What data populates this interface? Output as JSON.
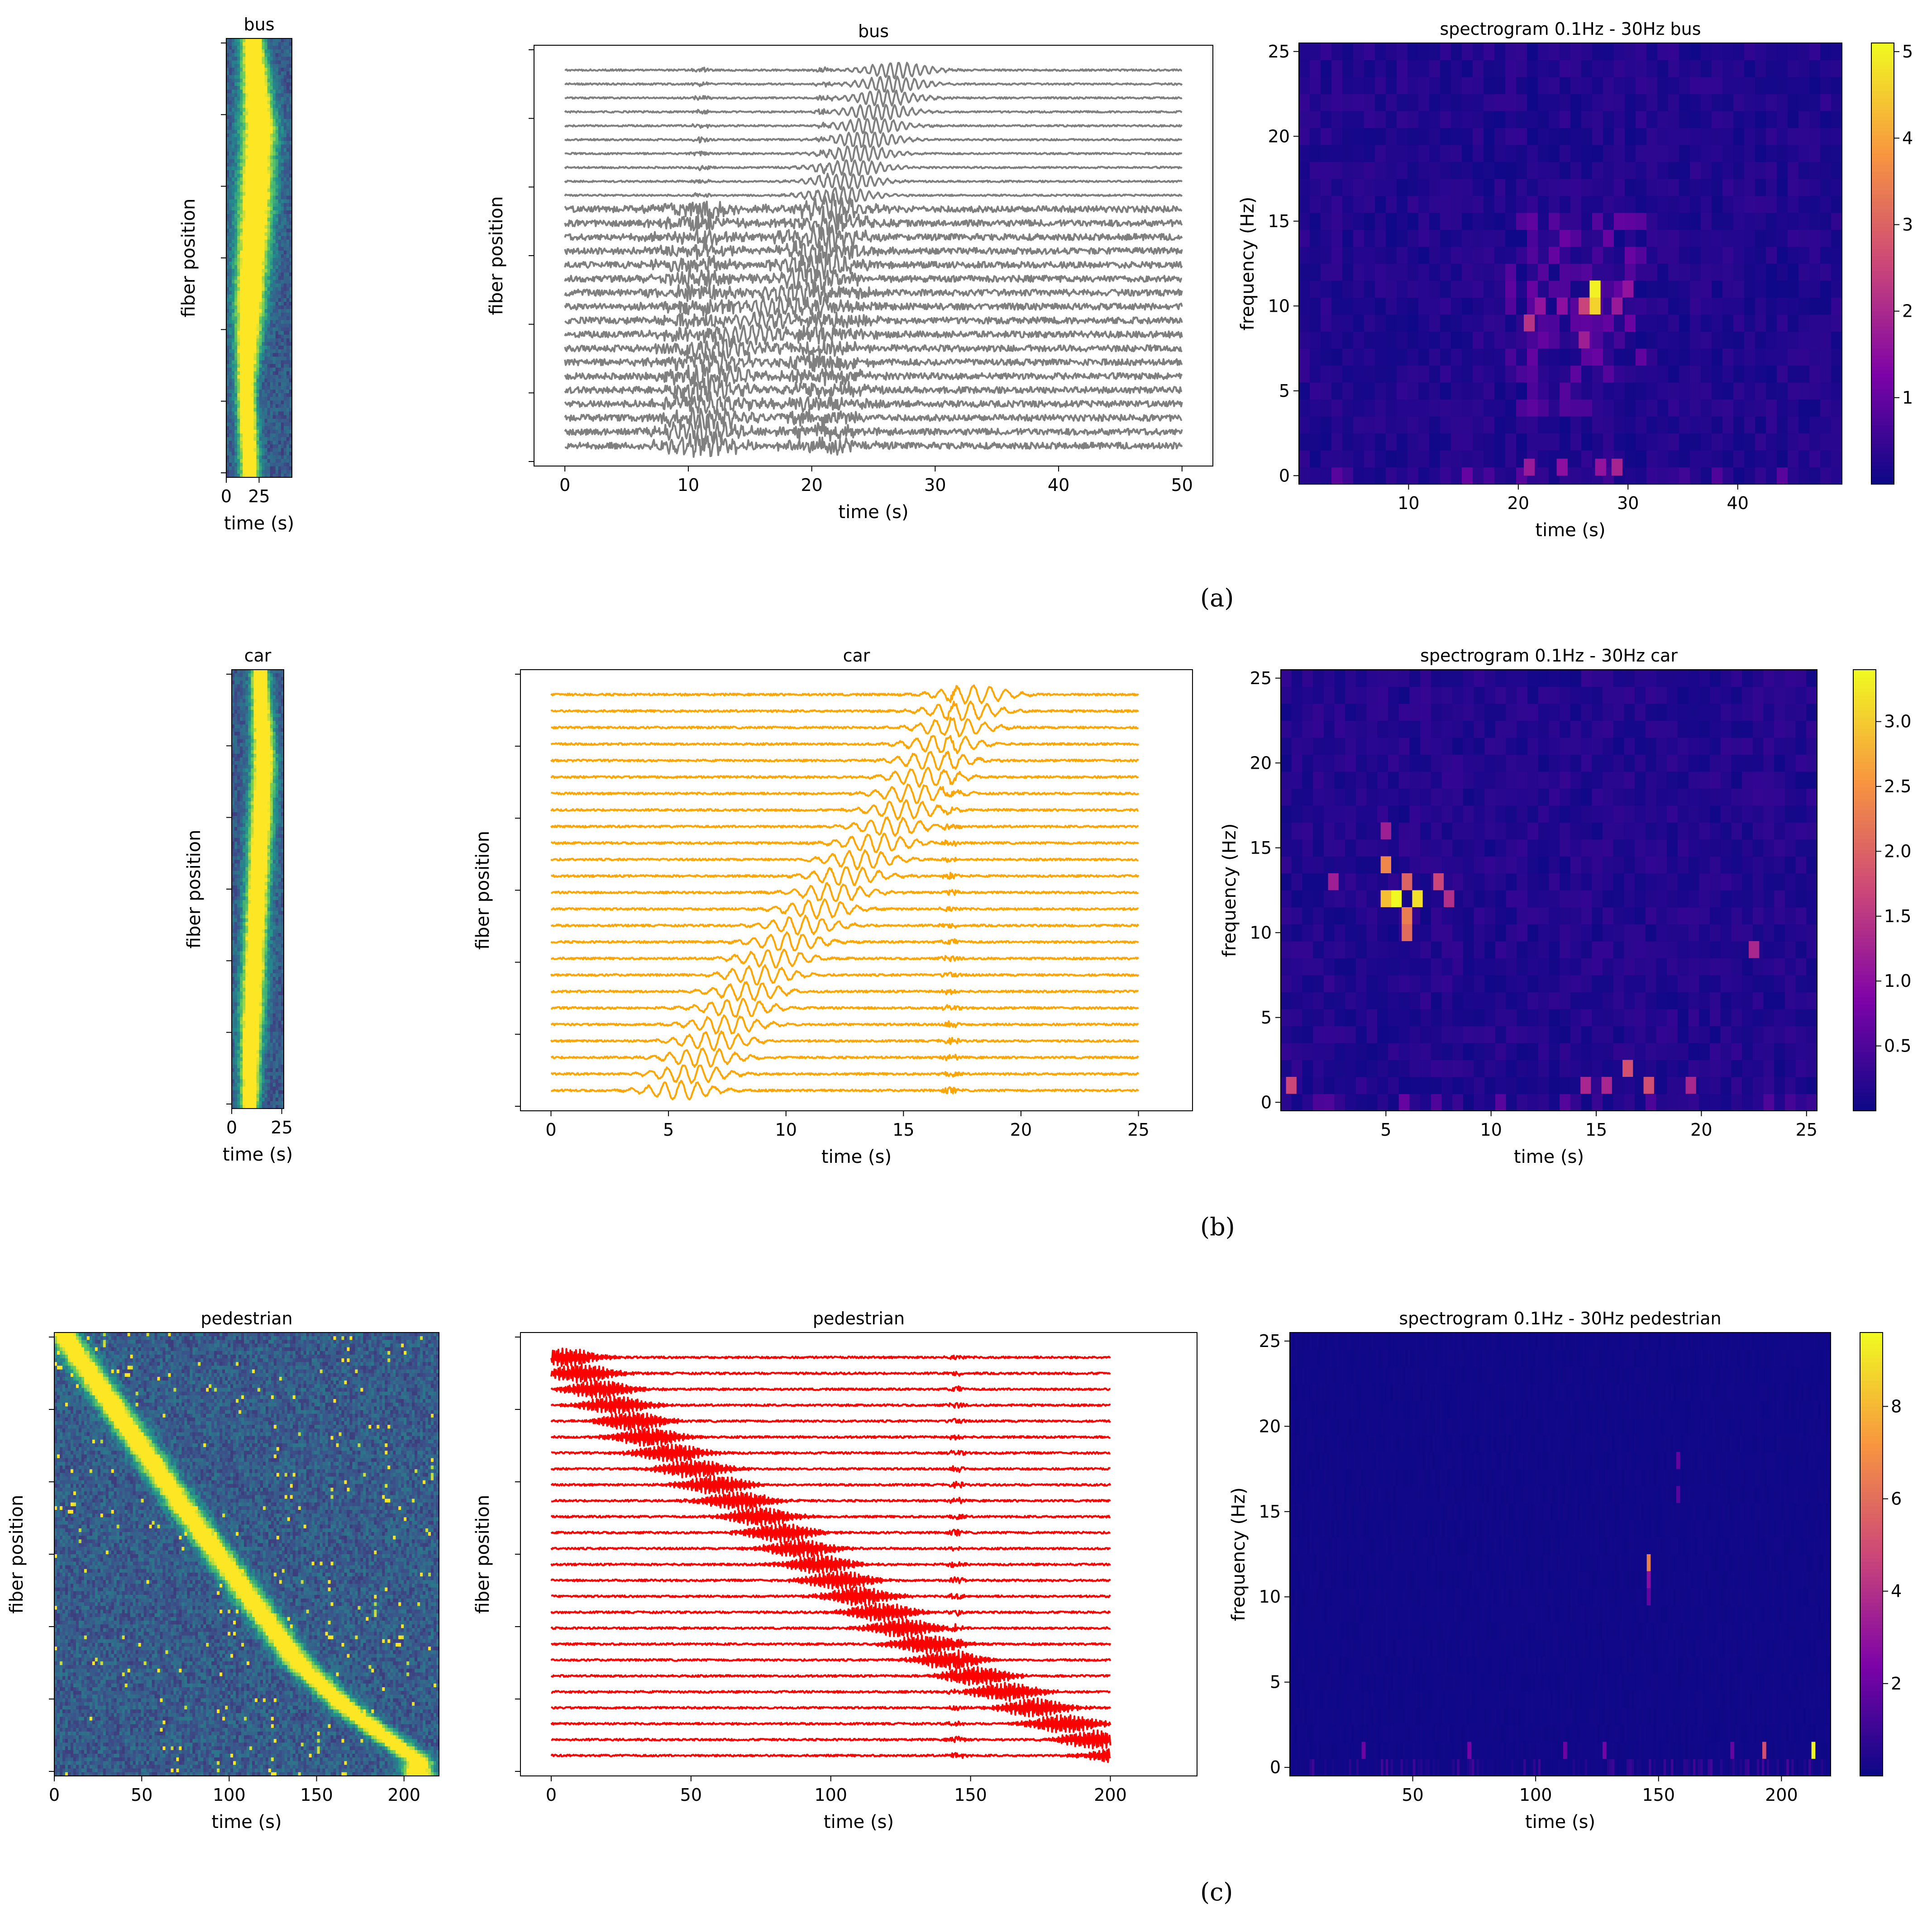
{
  "panel_captions": [
    "(a)",
    "(b)",
    "(c)"
  ],
  "chart_data": [
    {
      "panel": "a",
      "type": "heatmap",
      "title": "bus",
      "xlabel": "time (s)",
      "ylabel": "fiber position",
      "xticks": [
        0,
        25
      ],
      "xlim": [
        0,
        50
      ],
      "colormap": "viridis",
      "y_ticks_unlabeled": 7,
      "pattern": {
        "kind": "band",
        "x_center": [
          20,
          25,
          22,
          18,
          15,
          18
        ],
        "width": [
          12,
          18,
          18,
          16,
          10,
          10
        ],
        "noise": 0.2
      }
    },
    {
      "panel": "a",
      "type": "line",
      "title": "bus",
      "xlabel": "time (s)",
      "ylabel": "fiber position",
      "xticks": [
        0,
        10,
        20,
        30,
        40,
        50
      ],
      "xlim": [
        -2.5,
        52.5
      ],
      "n_traces": 28,
      "color": "#808080",
      "y_ticks_unlabeled": 7,
      "event_curve": [
        [
          0,
          27
        ],
        [
          0.35,
          22
        ],
        [
          0.55,
          20
        ],
        [
          0.75,
          13
        ],
        [
          1,
          11
        ]
      ],
      "spread_s": 3,
      "noisy_below_fraction": 0.65,
      "noisy_times": [
        11,
        21
      ]
    },
    {
      "panel": "a",
      "type": "heatmap",
      "title": "spectrogram 0.1Hz - 30Hz  bus",
      "xlabel": "time (s)",
      "ylabel": "frequency (Hz)",
      "xticks": [
        10,
        20,
        30,
        40
      ],
      "yticks": [
        0,
        5,
        10,
        15,
        20,
        25
      ],
      "xlim": [
        0,
        49.5
      ],
      "ylim": [
        -0.5,
        25.5
      ],
      "colormap": "plasma",
      "colorbar": {
        "min": 0,
        "max": 5.1,
        "ticks": [
          1,
          2,
          3,
          4,
          5
        ]
      },
      "hot_cells": [
        {
          "t": 27,
          "f": 11,
          "v": 5.0
        },
        {
          "t": 27,
          "f": 10,
          "v": 4.6
        },
        {
          "t": 26,
          "f": 10,
          "v": 2.5
        },
        {
          "t": 21,
          "f": 9,
          "v": 2.2
        },
        {
          "t": 22,
          "f": 10,
          "v": 1.6
        },
        {
          "t": 29,
          "f": 10,
          "v": 1.7
        },
        {
          "t": 24,
          "f": 10,
          "v": 1.5
        },
        {
          "t": 26,
          "f": 8,
          "v": 1.8
        },
        {
          "t": 30,
          "f": 11,
          "v": 1.6
        },
        {
          "t": 21,
          "f": 0.5,
          "v": 1.7
        },
        {
          "t": 29,
          "f": 0.5,
          "v": 1.9
        },
        {
          "t": 24,
          "f": 0.5,
          "v": 1.5
        },
        {
          "t": 27.5,
          "f": 0.5,
          "v": 1.6
        }
      ]
    },
    {
      "panel": "b",
      "type": "heatmap",
      "title": "car",
      "xlabel": "time (s)",
      "ylabel": "fiber position",
      "xticks": [
        0,
        25
      ],
      "xlim": [
        0,
        26
      ],
      "colormap": "viridis",
      "y_ticks_unlabeled": 7,
      "pattern": {
        "kind": "band",
        "x_center": [
          14,
          16,
          14,
          12,
          10,
          9
        ],
        "width": [
          6,
          8,
          8,
          8,
          8,
          6
        ],
        "noise": 0.2
      }
    },
    {
      "panel": "b",
      "type": "line",
      "title": "car",
      "xlabel": "time (s)",
      "ylabel": "fiber position",
      "xticks": [
        0,
        5,
        10,
        15,
        20,
        25
      ],
      "xlim": [
        -1.3,
        27.3
      ],
      "n_traces": 25,
      "color": "#ffa500",
      "y_ticks_unlabeled": 7,
      "event_curve": [
        [
          0,
          18
        ],
        [
          0.3,
          15
        ],
        [
          0.5,
          12
        ],
        [
          0.7,
          9
        ],
        [
          1,
          5.5
        ]
      ],
      "spread_s": 1.6,
      "noisy_below_fraction": 0,
      "noisy_times": [
        17
      ]
    },
    {
      "panel": "b",
      "type": "heatmap",
      "title": "spectrogram 0.1Hz - 30Hz  car",
      "xlabel": "time (s)",
      "ylabel": "frequency (Hz)",
      "xticks": [
        5,
        10,
        15,
        20,
        25
      ],
      "yticks": [
        0,
        5,
        10,
        15,
        20,
        25
      ],
      "xlim": [
        0,
        25.5
      ],
      "ylim": [
        -0.5,
        25.5
      ],
      "colormap": "plasma",
      "colorbar": {
        "min": 0,
        "max": 3.4,
        "ticks": [
          0.5,
          1.0,
          1.5,
          2.0,
          2.5,
          3.0
        ]
      },
      "hot_cells": [
        {
          "t": 5.5,
          "f": 12,
          "v": 3.4
        },
        {
          "t": 6.5,
          "f": 12,
          "v": 3.2
        },
        {
          "t": 5,
          "f": 12,
          "v": 2.9
        },
        {
          "t": 5,
          "f": 14,
          "v": 2.4
        },
        {
          "t": 6,
          "f": 13,
          "v": 2.0
        },
        {
          "t": 6,
          "f": 11,
          "v": 2.3
        },
        {
          "t": 6,
          "f": 10,
          "v": 2.1
        },
        {
          "t": 7.5,
          "f": 13,
          "v": 1.7
        },
        {
          "t": 8,
          "f": 12,
          "v": 1.4
        },
        {
          "t": 5,
          "f": 16,
          "v": 1.2
        },
        {
          "t": 2.5,
          "f": 13,
          "v": 1.2
        },
        {
          "t": 16.5,
          "f": 2,
          "v": 1.8
        },
        {
          "t": 17.5,
          "f": 1,
          "v": 1.8
        },
        {
          "t": 0.5,
          "f": 1,
          "v": 1.7
        },
        {
          "t": 14.5,
          "f": 1,
          "v": 1.3
        },
        {
          "t": 15.5,
          "f": 1,
          "v": 1.3
        },
        {
          "t": 19.5,
          "f": 1,
          "v": 1.3
        },
        {
          "t": 22.5,
          "f": 9,
          "v": 1.3
        }
      ]
    },
    {
      "panel": "c",
      "type": "heatmap",
      "title": "pedestrian",
      "xlabel": "time (s)",
      "ylabel": "fiber position",
      "xticks": [
        0,
        50,
        100,
        150,
        200
      ],
      "xlim": [
        0,
        220
      ],
      "colormap": "viridis",
      "y_ticks_unlabeled": 7,
      "pattern": {
        "kind": "diagonal",
        "path": [
          [
            0,
            5
          ],
          [
            0.2,
            40
          ],
          [
            0.4,
            75
          ],
          [
            0.6,
            112
          ],
          [
            0.75,
            140
          ],
          [
            0.85,
            167
          ],
          [
            0.97,
            208
          ]
        ],
        "width": 10,
        "noise": 0.22
      }
    },
    {
      "panel": "c",
      "type": "line",
      "title": "pedestrian",
      "xlabel": "time (s)",
      "ylabel": "fiber position",
      "xticks": [
        0,
        50,
        100,
        150,
        200
      ],
      "xlim": [
        -11,
        231
      ],
      "n_traces": 26,
      "color": "#ff0000",
      "y_ticks_unlabeled": 7,
      "event_curve": [
        [
          0,
          5
        ],
        [
          0.2,
          35
        ],
        [
          0.4,
          75
        ],
        [
          0.6,
          110
        ],
        [
          0.75,
          140
        ],
        [
          0.85,
          165
        ],
        [
          1,
          205
        ]
      ],
      "spread_s": 12,
      "noisy_below_fraction": 0,
      "noisy_times": [
        145
      ]
    },
    {
      "panel": "c",
      "type": "heatmap",
      "title": "spectrogram 0.1Hz - 30Hz  pedestrian",
      "xlabel": "time (s)",
      "ylabel": "frequency (Hz)",
      "xticks": [
        50,
        100,
        150,
        200
      ],
      "yticks": [
        0,
        5,
        10,
        15,
        20,
        25
      ],
      "xlim": [
        0,
        220
      ],
      "ylim": [
        -0.5,
        25.5
      ],
      "colormap": "plasma",
      "colorbar": {
        "min": 0,
        "max": 9.6,
        "ticks": [
          2,
          4,
          6,
          8
        ]
      },
      "hot_cells": [
        {
          "t": 146,
          "f": 12,
          "v": 6.5
        },
        {
          "t": 146,
          "f": 11,
          "v": 2.8
        },
        {
          "t": 146,
          "f": 10,
          "v": 1.8
        },
        {
          "t": 213,
          "f": 1,
          "v": 9.5
        },
        {
          "t": 193,
          "f": 1,
          "v": 5.0
        },
        {
          "t": 158,
          "f": 18,
          "v": 1.8
        },
        {
          "t": 158,
          "f": 16,
          "v": 1.6
        },
        {
          "t": 73,
          "f": 1,
          "v": 2.2
        },
        {
          "t": 112,
          "f": 1,
          "v": 2.0
        },
        {
          "t": 128,
          "f": 1,
          "v": 2.2
        },
        {
          "t": 30,
          "f": 1,
          "v": 2.0
        },
        {
          "t": 180,
          "f": 1,
          "v": 1.9
        }
      ]
    }
  ]
}
